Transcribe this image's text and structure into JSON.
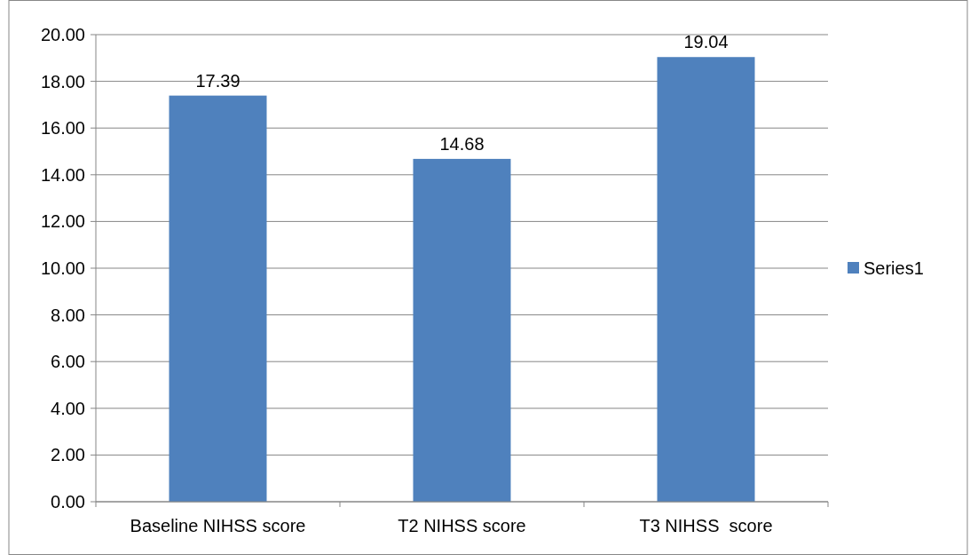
{
  "chart_data": {
    "type": "bar",
    "categories": [
      "Baseline NIHSS score",
      "T2 NIHSS score",
      "T3 NIHSS  score"
    ],
    "series": [
      {
        "name": "Series1",
        "color": "#4f81bd",
        "values": [
          17.39,
          14.68,
          19.04
        ]
      }
    ],
    "ylim": [
      0,
      20
    ],
    "yticks": [
      {
        "value": 0,
        "label": "0.00"
      },
      {
        "value": 2,
        "label": "2.00"
      },
      {
        "value": 4,
        "label": "4.00"
      },
      {
        "value": 6,
        "label": "6.00"
      },
      {
        "value": 8,
        "label": "8.00"
      },
      {
        "value": 10,
        "label": "10.00"
      },
      {
        "value": 12,
        "label": "12.00"
      },
      {
        "value": 14,
        "label": "14.00"
      },
      {
        "value": 16,
        "label": "16.00"
      },
      {
        "value": 18,
        "label": "18.00"
      },
      {
        "value": 20,
        "label": "20.00"
      }
    ],
    "grid": "y",
    "legend": "right",
    "data_labels": true
  }
}
